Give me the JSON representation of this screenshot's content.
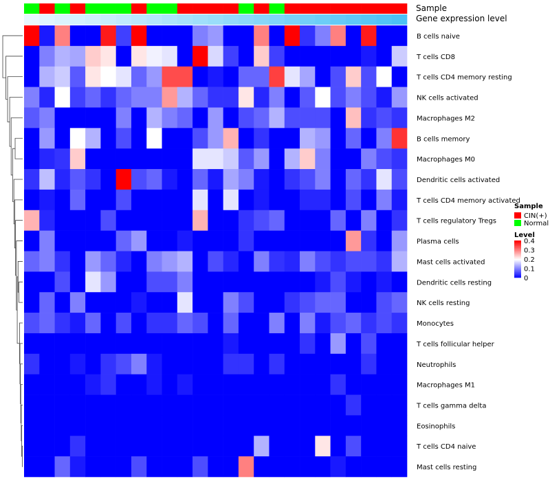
{
  "chart_data": {
    "type": "heatmap",
    "title": "",
    "annotation_labels": {
      "sample": "Sample",
      "expression": "Gene expression level"
    },
    "sample_groups": [
      "Normal",
      "CIN(+)",
      "Normal",
      "CIN(+)",
      "Normal",
      "Normal",
      "Normal",
      "CIN(+)",
      "Normal",
      "Normal",
      "CIN(+)",
      "CIN(+)",
      "CIN(+)",
      "CIN(+)",
      "Normal",
      "CIN(+)",
      "Normal",
      "CIN(+)",
      "CIN(+)",
      "CIN(+)",
      "CIN(+)",
      "CIN(+)",
      "CIN(+)",
      "CIN(+)",
      "CIN(+)"
    ],
    "expression_levels": [
      0.0,
      0.04,
      0.08,
      0.12,
      0.16,
      0.2,
      0.24,
      0.28,
      0.32,
      0.36,
      0.4,
      0.44,
      0.48,
      0.52,
      0.56,
      0.6,
      0.64,
      0.68,
      0.72,
      0.76,
      0.8,
      0.84,
      0.88,
      0.92,
      0.96
    ],
    "row_labels": [
      "B cells naive",
      "T cells CD8",
      "T cells CD4 memory resting",
      "NK cells activated",
      "Macrophages M2",
      "B cells memory",
      "Macrophages M0",
      "Dendritic cells activated",
      "T cells CD4 memory activated",
      "T cells regulatory  Tregs",
      "Plasma cells",
      "Mast cells activated",
      "Dendritic cells resting",
      "NK cells resting",
      "Monocytes",
      "T cells follicular helper",
      "Neutrophils",
      "Macrophages M1",
      "T cells gamma delta",
      "Eosinophils",
      "T cells CD4 naive",
      "Mast cells resting"
    ],
    "values": [
      [
        0.4,
        0.02,
        0.3,
        0.0,
        0.0,
        0.38,
        0.05,
        0.4,
        0.0,
        0.0,
        0.0,
        0.1,
        0.12,
        0.0,
        0.0,
        0.3,
        0.0,
        0.4,
        0.04,
        0.1,
        0.3,
        0.0,
        0.38,
        0.0,
        0.0
      ],
      [
        0.0,
        0.1,
        0.14,
        0.13,
        0.24,
        0.22,
        0.0,
        0.22,
        0.19,
        0.18,
        0.0,
        0.4,
        0.17,
        0.05,
        0.0,
        0.24,
        0.05,
        0.0,
        0.0,
        0.0,
        0.0,
        0.0,
        0.02,
        0.0,
        0.16
      ],
      [
        0.0,
        0.14,
        0.16,
        0.07,
        0.22,
        0.2,
        0.18,
        0.08,
        0.12,
        0.34,
        0.34,
        0.0,
        0.02,
        0.0,
        0.08,
        0.08,
        0.35,
        0.18,
        0.13,
        0.0,
        0.06,
        0.24,
        0.06,
        0.2,
        0.0
      ],
      [
        0.1,
        0.03,
        0.2,
        0.05,
        0.08,
        0.04,
        0.08,
        0.1,
        0.1,
        0.28,
        0.14,
        0.08,
        0.04,
        0.04,
        0.22,
        0.03,
        0.1,
        0.0,
        0.07,
        0.2,
        0.06,
        0.1,
        0.06,
        0.02,
        0.12
      ],
      [
        0.07,
        0.1,
        0.0,
        0.0,
        0.0,
        0.0,
        0.1,
        0.0,
        0.14,
        0.1,
        0.08,
        0.0,
        0.12,
        0.0,
        0.06,
        0.08,
        0.14,
        0.06,
        0.06,
        0.06,
        0.0,
        0.25,
        0.04,
        0.06,
        0.04
      ],
      [
        0.0,
        0.12,
        0.0,
        0.2,
        0.14,
        0.0,
        0.06,
        0.0,
        0.2,
        0.0,
        0.0,
        0.06,
        0.12,
        0.26,
        0.0,
        0.04,
        0.0,
        0.0,
        0.14,
        0.12,
        0.0,
        0.08,
        0.0,
        0.1,
        0.36
      ],
      [
        0.0,
        0.03,
        0.04,
        0.24,
        0.0,
        0.0,
        0.0,
        0.0,
        0.0,
        0.0,
        0.0,
        0.18,
        0.18,
        0.16,
        0.07,
        0.12,
        0.0,
        0.14,
        0.24,
        0.1,
        0.0,
        0.0,
        0.1,
        0.06,
        0.04
      ],
      [
        0.04,
        0.15,
        0.03,
        0.07,
        0.04,
        0.0,
        0.4,
        0.06,
        0.08,
        0.02,
        0.0,
        0.08,
        0.02,
        0.13,
        0.1,
        0.02,
        0.0,
        0.04,
        0.06,
        0.1,
        0.0,
        0.08,
        0.04,
        0.18,
        0.06
      ],
      [
        0.0,
        0.02,
        0.0,
        0.08,
        0.0,
        0.0,
        0.06,
        0.0,
        0.0,
        0.0,
        0.0,
        0.18,
        0.0,
        0.18,
        0.0,
        0.02,
        0.0,
        0.0,
        0.03,
        0.03,
        0.0,
        0.06,
        0.0,
        0.1,
        0.02
      ],
      [
        0.26,
        0.03,
        0.0,
        0.0,
        0.0,
        0.06,
        0.0,
        0.0,
        0.0,
        0.0,
        0.0,
        0.26,
        0.0,
        0.0,
        0.04,
        0.06,
        0.08,
        0.0,
        0.0,
        0.0,
        0.08,
        0.0,
        0.1,
        0.0,
        0.04
      ],
      [
        0.0,
        0.1,
        0.0,
        0.0,
        0.0,
        0.0,
        0.08,
        0.12,
        0.0,
        0.0,
        0.02,
        0.0,
        0.0,
        0.0,
        0.04,
        0.0,
        0.0,
        0.0,
        0.0,
        0.0,
        0.0,
        0.28,
        0.04,
        0.0,
        0.12
      ],
      [
        0.08,
        0.1,
        0.04,
        0.0,
        0.12,
        0.08,
        0.03,
        0.0,
        0.1,
        0.12,
        0.14,
        0.0,
        0.06,
        0.03,
        0.0,
        0.1,
        0.04,
        0.03,
        0.1,
        0.06,
        0.04,
        0.06,
        0.06,
        0.04,
        0.14
      ],
      [
        0.0,
        0.0,
        0.06,
        0.0,
        0.18,
        0.12,
        0.0,
        0.0,
        0.06,
        0.06,
        0.1,
        0.0,
        0.0,
        0.0,
        0.0,
        0.0,
        0.0,
        0.0,
        0.0,
        0.02,
        0.06,
        0.02,
        0.0,
        0.02,
        0.0
      ],
      [
        0.0,
        0.08,
        0.0,
        0.1,
        0.0,
        0.0,
        0.0,
        0.02,
        0.0,
        0.0,
        0.18,
        0.0,
        0.0,
        0.1,
        0.06,
        0.0,
        0.0,
        0.04,
        0.06,
        0.08,
        0.08,
        0.0,
        0.0,
        0.06,
        0.08
      ],
      [
        0.06,
        0.08,
        0.04,
        0.02,
        0.08,
        0.0,
        0.06,
        0.0,
        0.04,
        0.04,
        0.08,
        0.06,
        0.0,
        0.08,
        0.0,
        0.0,
        0.1,
        0.0,
        0.1,
        0.02,
        0.06,
        0.08,
        0.04,
        0.06,
        0.04
      ],
      [
        0.0,
        0.0,
        0.0,
        0.0,
        0.0,
        0.0,
        0.0,
        0.0,
        0.0,
        0.0,
        0.0,
        0.0,
        0.0,
        0.02,
        0.0,
        0.0,
        0.0,
        0.0,
        0.04,
        0.0,
        0.12,
        0.0,
        0.06,
        0.0,
        0.0
      ],
      [
        0.04,
        0.0,
        0.0,
        0.02,
        0.0,
        0.04,
        0.06,
        0.1,
        0.02,
        0.0,
        0.0,
        0.0,
        0.0,
        0.04,
        0.04,
        0.0,
        0.04,
        0.0,
        0.0,
        0.0,
        0.0,
        0.0,
        0.04,
        0.0,
        0.0
      ],
      [
        0.0,
        0.0,
        0.0,
        0.0,
        0.02,
        0.04,
        0.0,
        0.0,
        0.02,
        0.0,
        0.02,
        0.0,
        0.0,
        0.0,
        0.0,
        0.0,
        0.0,
        0.0,
        0.0,
        0.0,
        0.04,
        0.0,
        0.0,
        0.0,
        0.0
      ],
      [
        0.0,
        0.0,
        0.0,
        0.0,
        0.0,
        0.0,
        0.0,
        0.0,
        0.0,
        0.0,
        0.0,
        0.0,
        0.0,
        0.0,
        0.0,
        0.0,
        0.0,
        0.0,
        0.0,
        0.0,
        0.0,
        0.04,
        0.0,
        0.0,
        0.0
      ],
      [
        0.0,
        0.0,
        0.0,
        0.0,
        0.0,
        0.0,
        0.0,
        0.0,
        0.0,
        0.0,
        0.0,
        0.0,
        0.0,
        0.0,
        0.0,
        0.0,
        0.0,
        0.0,
        0.0,
        0.0,
        0.0,
        0.0,
        0.0,
        0.0,
        0.0
      ],
      [
        0.0,
        0.0,
        0.0,
        0.04,
        0.0,
        0.0,
        0.0,
        0.0,
        0.0,
        0.0,
        0.0,
        0.0,
        0.0,
        0.0,
        0.0,
        0.14,
        0.0,
        0.0,
        0.0,
        0.22,
        0.0,
        0.06,
        0.0,
        0.0,
        0.0
      ],
      [
        0.0,
        0.0,
        0.08,
        0.02,
        0.0,
        0.0,
        0.0,
        0.06,
        0.0,
        0.0,
        0.0,
        0.06,
        0.0,
        0.0,
        0.3,
        0.0,
        0.0,
        0.0,
        0.0,
        0.0,
        0.02,
        0.0,
        0.0,
        0.0,
        0.0
      ]
    ],
    "color_scale": {
      "min": 0,
      "mid": 0.2,
      "max": 0.4,
      "low_color": "#0000ff",
      "mid_color": "#ffffff",
      "high_color": "#ff0000"
    },
    "expression_scale": {
      "low_color": "#e8f8ff",
      "high_color": "#45bff5"
    },
    "legend": {
      "sample_title": "Sample",
      "sample_items": [
        {
          "label": "CIN(+)",
          "color": "#ff0000"
        },
        {
          "label": "Normal",
          "color": "#00ff00"
        }
      ],
      "level_title": "Level",
      "level_ticks": [
        {
          "value": 0.4,
          "label": "0.4"
        },
        {
          "value": 0.3,
          "label": "0.3"
        },
        {
          "value": 0.2,
          "label": "0.2"
        },
        {
          "value": 0.1,
          "label": "0.1"
        },
        {
          "value": 0.0,
          "label": "0"
        }
      ]
    },
    "dendrogram": {
      "merges": [
        [
          20,
          21
        ],
        [
          19,
          -1
        ],
        [
          18,
          -2
        ],
        [
          17,
          -3
        ],
        [
          16,
          -4
        ],
        [
          15,
          -5
        ],
        [
          14,
          -6
        ],
        [
          12,
          13
        ],
        [
          11,
          -8
        ],
        [
          -7,
          -9
        ],
        [
          10,
          -10
        ],
        [
          9,
          -11
        ],
        [
          8,
          -12
        ],
        [
          7,
          -13
        ],
        [
          5,
          6
        ],
        [
          -14,
          -15
        ],
        [
          4,
          -16
        ],
        [
          3,
          -17
        ],
        [
          2,
          -18
        ],
        [
          1,
          -19
        ],
        [
          0,
          -20
        ]
      ],
      "heights": [
        0.02,
        0.05,
        0.07,
        0.09,
        0.11,
        0.13,
        0.15,
        0.18,
        0.22,
        0.26,
        0.3,
        0.34,
        0.38,
        0.42,
        0.36,
        0.48,
        0.55,
        0.62,
        0.72,
        0.8,
        0.95
      ]
    }
  }
}
